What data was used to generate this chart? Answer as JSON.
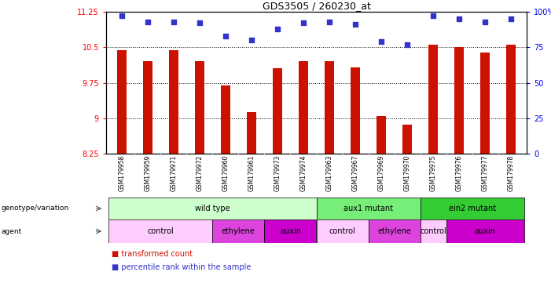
{
  "title": "GDS3505 / 260230_at",
  "samples": [
    "GSM179958",
    "GSM179959",
    "GSM179971",
    "GSM179972",
    "GSM179960",
    "GSM179961",
    "GSM179973",
    "GSM179974",
    "GSM179963",
    "GSM179967",
    "GSM179969",
    "GSM179970",
    "GSM179975",
    "GSM179976",
    "GSM179977",
    "GSM179978"
  ],
  "bar_values": [
    10.43,
    10.2,
    10.44,
    10.2,
    9.7,
    9.13,
    10.05,
    10.2,
    10.2,
    10.08,
    9.04,
    8.86,
    10.55,
    10.5,
    10.38,
    10.56
  ],
  "percentile_values": [
    97,
    93,
    93,
    92,
    83,
    80,
    88,
    92,
    93,
    91,
    79,
    77,
    97,
    95,
    93,
    95
  ],
  "ylim_left": [
    8.25,
    11.25
  ],
  "ylim_right": [
    0,
    100
  ],
  "yticks_left": [
    8.25,
    9.0,
    9.75,
    10.5,
    11.25
  ],
  "ytick_labels_left": [
    "8.25",
    "9",
    "9.75",
    "10.5",
    "11.25"
  ],
  "yticks_right": [
    0,
    25,
    50,
    75,
    100
  ],
  "ytick_labels_right": [
    "0",
    "25",
    "50",
    "75",
    "100%"
  ],
  "bar_color": "#cc1100",
  "dot_color": "#3333cc",
  "genotype_groups": [
    {
      "label": "wild type",
      "start": 0,
      "end": 7,
      "color": "#ccffcc"
    },
    {
      "label": "aux1 mutant",
      "start": 8,
      "end": 11,
      "color": "#77ee77"
    },
    {
      "label": "ein2 mutant",
      "start": 12,
      "end": 15,
      "color": "#33cc33"
    }
  ],
  "agent_groups": [
    {
      "label": "control",
      "start": 0,
      "end": 3,
      "color": "#ffccff"
    },
    {
      "label": "ethylene",
      "start": 4,
      "end": 5,
      "color": "#dd44dd"
    },
    {
      "label": "auxin",
      "start": 6,
      "end": 7,
      "color": "#cc00cc"
    },
    {
      "label": "control",
      "start": 8,
      "end": 9,
      "color": "#ffccff"
    },
    {
      "label": "ethylene",
      "start": 10,
      "end": 11,
      "color": "#dd44dd"
    },
    {
      "label": "control",
      "start": 12,
      "end": 12,
      "color": "#ffccff"
    },
    {
      "label": "auxin",
      "start": 13,
      "end": 15,
      "color": "#cc00cc"
    }
  ],
  "grid_yticks": [
    9.0,
    9.75,
    10.5
  ],
  "bar_width": 0.35
}
